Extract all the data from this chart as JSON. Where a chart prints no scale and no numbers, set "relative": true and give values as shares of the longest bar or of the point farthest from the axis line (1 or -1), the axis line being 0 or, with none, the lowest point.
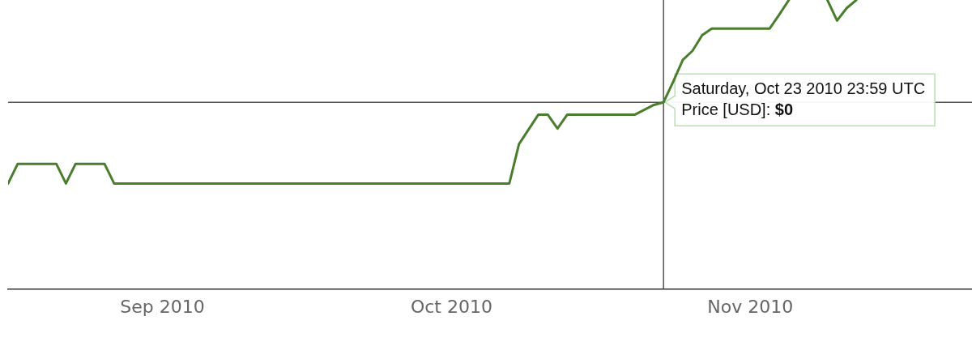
{
  "chart_data": {
    "type": "line",
    "relative": true,
    "x": [
      "2010-08-16",
      "2010-08-17",
      "2010-08-21",
      "2010-08-22",
      "2010-08-23",
      "2010-08-26",
      "2010-08-27",
      "2010-10-07",
      "2010-10-08",
      "2010-10-10",
      "2010-10-11",
      "2010-10-12",
      "2010-10-13",
      "2010-10-20",
      "2010-10-22",
      "2010-10-23",
      "2010-10-24",
      "2010-10-25",
      "2010-10-26",
      "2010-10-27",
      "2010-10-28",
      "2010-11-03",
      "2010-11-04",
      "2010-11-05",
      "2010-11-07",
      "2010-11-09",
      "2010-11-10",
      "2010-11-11",
      "2010-11-12"
    ],
    "series": [
      {
        "color": "#4a7d2e",
        "values": [
          0.365,
          0.433,
          0.433,
          0.365,
          0.433,
          0.433,
          0.365,
          0.365,
          0.501,
          0.603,
          0.603,
          0.555,
          0.603,
          0.603,
          0.637,
          0.646,
          0.717,
          0.793,
          0.824,
          0.878,
          0.901,
          0.901,
          0.949,
          1,
          null,
          1,
          0.929,
          0.972,
          1
        ]
      }
    ],
    "ref_lines": [
      {
        "axis": "x",
        "value": "2010-10-23",
        "color": "#555555"
      },
      {
        "axis": "y",
        "value": 0.646,
        "color": "#555555"
      }
    ],
    "xlim": [
      "2010-08-16",
      "2010-11-24"
    ],
    "xticks": [
      {
        "value": "2010-09-01",
        "label": "Sep 2010"
      },
      {
        "value": "2010-10-01",
        "label": "Oct 2010"
      },
      {
        "value": "2010-11-01",
        "label": "Nov 2010"
      }
    ],
    "grid": false,
    "legend": false,
    "marker": "none",
    "line_style": "solid",
    "annotations": [
      {
        "text": "Saturday, Oct 23 2010 23:59 UTC\nPrice [USD]: $0",
        "x": "2010-10-23",
        "y": 0.646
      }
    ]
  }
}
